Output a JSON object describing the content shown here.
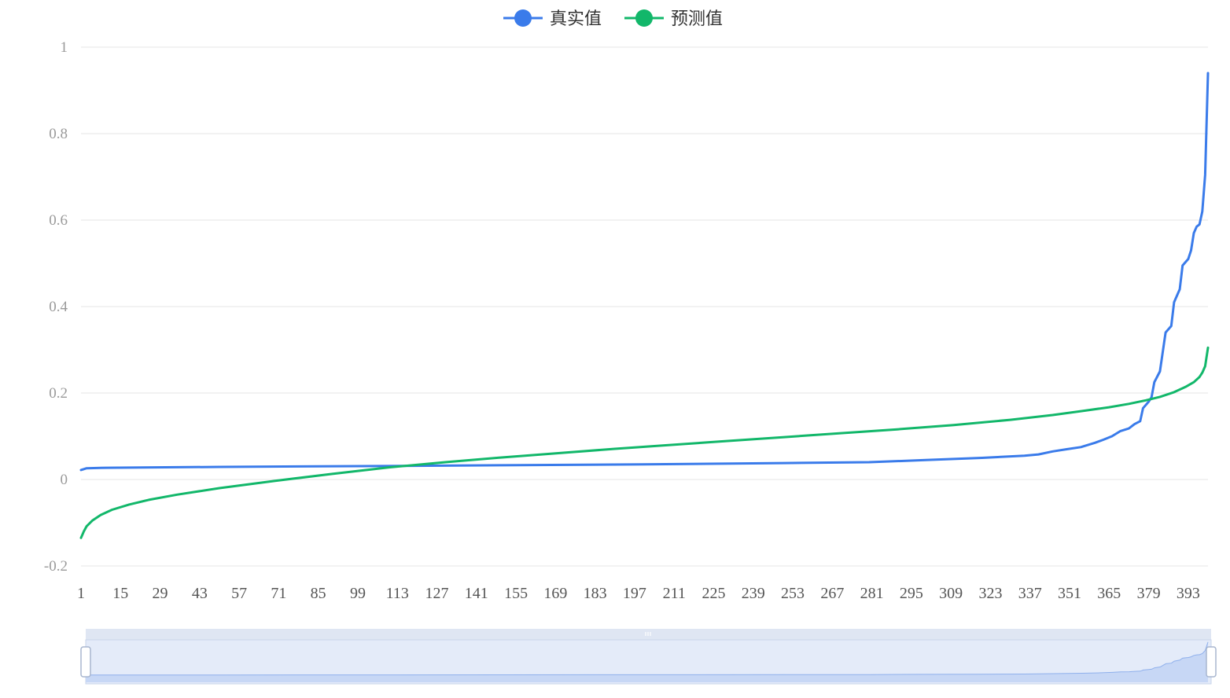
{
  "chart_data": {
    "type": "line",
    "legend_position": "top-center",
    "grid": true,
    "ylim": [
      -0.2,
      1
    ],
    "yticks": [
      "-0.2",
      "0",
      "0.2",
      "0.4",
      "0.6",
      "0.8",
      "1"
    ],
    "xlim": [
      1,
      400
    ],
    "xticks": [
      1,
      15,
      29,
      43,
      57,
      71,
      85,
      99,
      113,
      127,
      141,
      155,
      169,
      183,
      197,
      211,
      225,
      239,
      253,
      267,
      281,
      295,
      309,
      323,
      337,
      351,
      365,
      379,
      393
    ],
    "series": [
      {
        "name": "真实值",
        "color": "#3a7bea",
        "points": [
          [
            1,
            0.022
          ],
          [
            3,
            0.026
          ],
          [
            10,
            0.027
          ],
          [
            50,
            0.029
          ],
          [
            100,
            0.031
          ],
          [
            150,
            0.033
          ],
          [
            200,
            0.035
          ],
          [
            250,
            0.038
          ],
          [
            280,
            0.04
          ],
          [
            300,
            0.045
          ],
          [
            320,
            0.05
          ],
          [
            335,
            0.055
          ],
          [
            340,
            0.058
          ],
          [
            345,
            0.065
          ],
          [
            350,
            0.07
          ],
          [
            355,
            0.075
          ],
          [
            360,
            0.085
          ],
          [
            363,
            0.092
          ],
          [
            366,
            0.1
          ],
          [
            369,
            0.112
          ],
          [
            372,
            0.118
          ],
          [
            374,
            0.128
          ],
          [
            376,
            0.135
          ],
          [
            377,
            0.165
          ],
          [
            379,
            0.18
          ],
          [
            380,
            0.19
          ],
          [
            381,
            0.225
          ],
          [
            383,
            0.25
          ],
          [
            385,
            0.34
          ],
          [
            387,
            0.355
          ],
          [
            388,
            0.41
          ],
          [
            390,
            0.44
          ],
          [
            391,
            0.495
          ],
          [
            393,
            0.51
          ],
          [
            394,
            0.53
          ],
          [
            395,
            0.57
          ],
          [
            396,
            0.585
          ],
          [
            397,
            0.59
          ],
          [
            398,
            0.62
          ],
          [
            399,
            0.705
          ],
          [
            400,
            0.94
          ]
        ]
      },
      {
        "name": "预测值",
        "color": "#12b76a",
        "points": [
          [
            1,
            -0.135
          ],
          [
            2,
            -0.12
          ],
          [
            3,
            -0.108
          ],
          [
            5,
            -0.095
          ],
          [
            8,
            -0.082
          ],
          [
            12,
            -0.07
          ],
          [
            18,
            -0.058
          ],
          [
            25,
            -0.047
          ],
          [
            35,
            -0.035
          ],
          [
            50,
            -0.02
          ],
          [
            70,
            -0.003
          ],
          [
            90,
            0.013
          ],
          [
            110,
            0.028
          ],
          [
            130,
            0.04
          ],
          [
            150,
            0.051
          ],
          [
            170,
            0.061
          ],
          [
            190,
            0.071
          ],
          [
            210,
            0.08
          ],
          [
            230,
            0.089
          ],
          [
            250,
            0.098
          ],
          [
            270,
            0.107
          ],
          [
            290,
            0.116
          ],
          [
            310,
            0.126
          ],
          [
            330,
            0.138
          ],
          [
            345,
            0.149
          ],
          [
            355,
            0.158
          ],
          [
            365,
            0.167
          ],
          [
            372,
            0.175
          ],
          [
            378,
            0.183
          ],
          [
            383,
            0.191
          ],
          [
            388,
            0.202
          ],
          [
            392,
            0.214
          ],
          [
            395,
            0.225
          ],
          [
            397,
            0.237
          ],
          [
            398,
            0.247
          ],
          [
            399,
            0.262
          ],
          [
            400,
            0.305
          ]
        ]
      }
    ]
  },
  "data_zoom": {
    "start_percent": 0,
    "end_percent": 100
  },
  "style": {
    "grid_color": "#e4e4e4",
    "zoom_fill": "#e4ebf9",
    "zoom_border": "#c9d4ea",
    "zoom_line": "#8fb0ec"
  }
}
